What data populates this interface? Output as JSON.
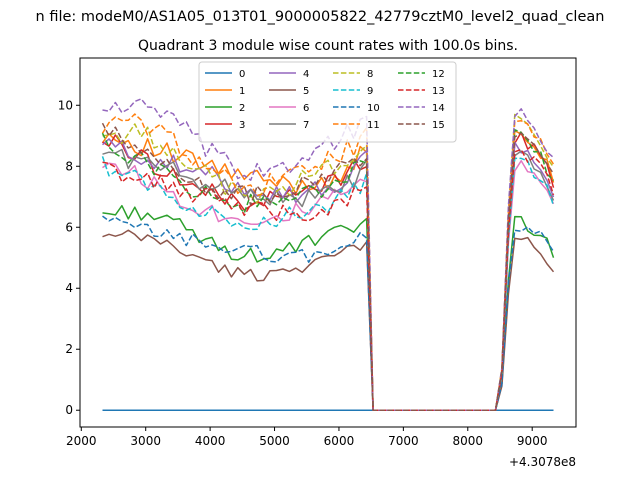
{
  "figure": {
    "suptitle": "n file: modeM0/AS1A05_013T01_9000005822_42779cztM0_level2_quad_clean",
    "title": "Quadrant 3 module wise count rates with 100.0s bins."
  },
  "chart_data": {
    "type": "line",
    "title": "Quadrant 3 module wise count rates with 100.0s bins.",
    "xlabel": "",
    "ylabel": "",
    "x_offset_label": "+4.3078e8",
    "xlim": [
      1980,
      9680
    ],
    "ylim": [
      -0.55,
      11.55
    ],
    "x_ticks": [
      2000,
      3000,
      4000,
      5000,
      6000,
      7000,
      8000,
      9000
    ],
    "x_tick_labels": [
      "2000",
      "3000",
      "4000",
      "5000",
      "6000",
      "7000",
      "8000",
      "9000"
    ],
    "y_ticks": [
      0,
      2,
      4,
      6,
      8,
      10
    ],
    "y_tick_labels": [
      "0",
      "2",
      "4",
      "6",
      "8",
      "10"
    ],
    "grid": false,
    "legend_placement": "upper-center",
    "x_range": [
      2330,
      9330
    ],
    "bin_width": 100,
    "gap": {
      "start": 6430,
      "end": 8430
    },
    "series": [
      {
        "name": "0",
        "color": "#1f77b4",
        "dash": false,
        "level": 0,
        "curve": "flat",
        "zero": true
      },
      {
        "name": "1",
        "color": "#ff7f0e",
        "dash": false,
        "level": 7.9,
        "curve": "a",
        "recover": 8.7
      },
      {
        "name": "2",
        "color": "#2ca02c",
        "dash": false,
        "level": 5.6,
        "curve": "b",
        "recover": 5.9
      },
      {
        "name": "3",
        "color": "#d62728",
        "dash": false,
        "level": 7.4,
        "curve": "c",
        "recover": 8.5
      },
      {
        "name": "4",
        "color": "#9467bd",
        "dash": false,
        "level": 7.6,
        "curve": "a",
        "recover": 8.3
      },
      {
        "name": "5",
        "color": "#8c564b",
        "dash": false,
        "level": 4.9,
        "curve": "b",
        "recover": 5.3
      },
      {
        "name": "6",
        "color": "#e377c2",
        "dash": false,
        "level": 6.8,
        "curve": "c",
        "recover": 7.6
      },
      {
        "name": "7",
        "color": "#7f7f7f",
        "dash": false,
        "level": 7.4,
        "curve": "a",
        "recover": 8.0
      },
      {
        "name": "8",
        "color": "#bcbd22",
        "dash": true,
        "level": 7.8,
        "curve": "b",
        "recover": 9.0
      },
      {
        "name": "9",
        "color": "#17becf",
        "dash": true,
        "level": 6.7,
        "curve": "c",
        "recover": 7.8
      },
      {
        "name": "10",
        "color": "#1f77b4",
        "dash": true,
        "level": 5.4,
        "curve": "a",
        "recover": 5.8
      },
      {
        "name": "11",
        "color": "#ff7f0e",
        "dash": true,
        "level": 8.1,
        "curve": "b",
        "recover": 9.0
      },
      {
        "name": "12",
        "color": "#2ca02c",
        "dash": true,
        "level": 7.3,
        "curve": "c",
        "recover": 8.6
      },
      {
        "name": "13",
        "color": "#d62728",
        "dash": true,
        "level": 6.9,
        "curve": "a",
        "recover": 8.1
      },
      {
        "name": "14",
        "color": "#9467bd",
        "dash": true,
        "level": 8.6,
        "curve": "b",
        "recover": 9.3
      },
      {
        "name": "15",
        "color": "#8c564b",
        "dash": true,
        "level": 7.6,
        "curve": "c",
        "recover": 8.7
      }
    ]
  }
}
